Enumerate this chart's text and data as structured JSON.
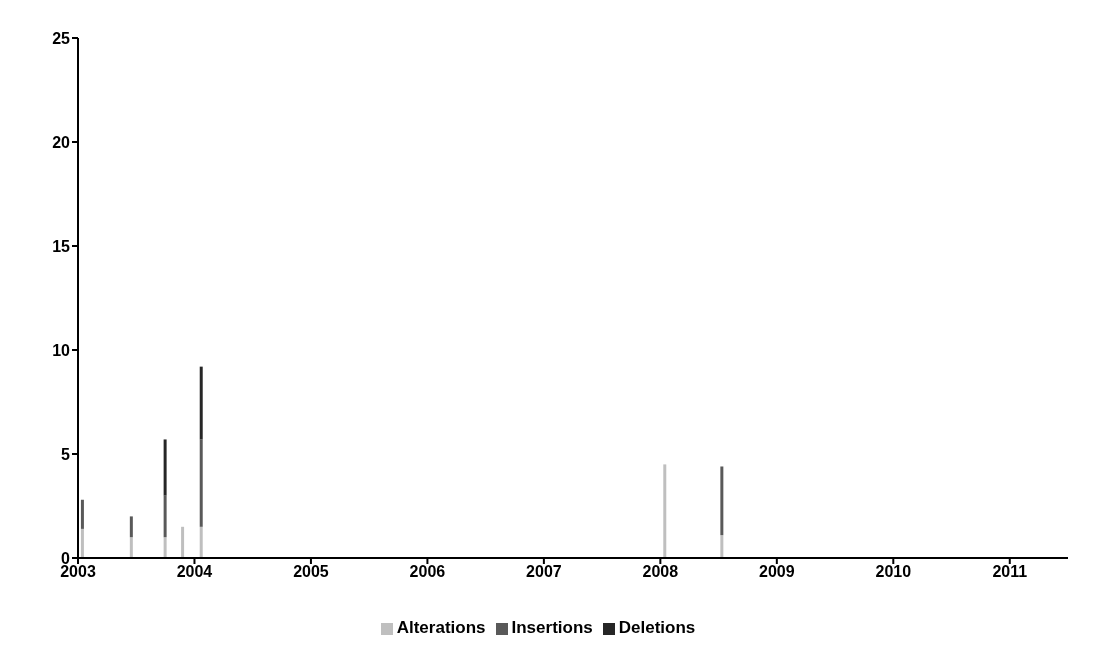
{
  "chart_data": {
    "type": "bar",
    "stacked": true,
    "x": [
      2003.04,
      2003.46,
      2003.75,
      2003.9,
      2004.06,
      2008.04,
      2008.53
    ],
    "series": [
      {
        "name": "Alterations",
        "color": "#bfbfbf",
        "values": [
          1.4,
          1,
          1,
          1.5,
          1.5,
          4.5,
          1.1
        ]
      },
      {
        "name": "Insertions",
        "color": "#595959",
        "values": [
          1.4,
          1,
          2,
          null,
          4.2,
          null,
          3.3
        ]
      },
      {
        "name": "Deletions",
        "color": "#262626",
        "values": [
          null,
          null,
          2.7,
          null,
          3.5,
          null,
          null
        ]
      }
    ],
    "xlim": [
      2003,
      2011.5
    ],
    "xticks": [
      2003,
      2004,
      2005,
      2006,
      2007,
      2008,
      2009,
      2010,
      2011
    ],
    "ylim": [
      0,
      25
    ],
    "yticks": [
      0,
      5,
      10,
      15,
      20,
      25
    ],
    "grid": false,
    "legend": "bottom"
  }
}
